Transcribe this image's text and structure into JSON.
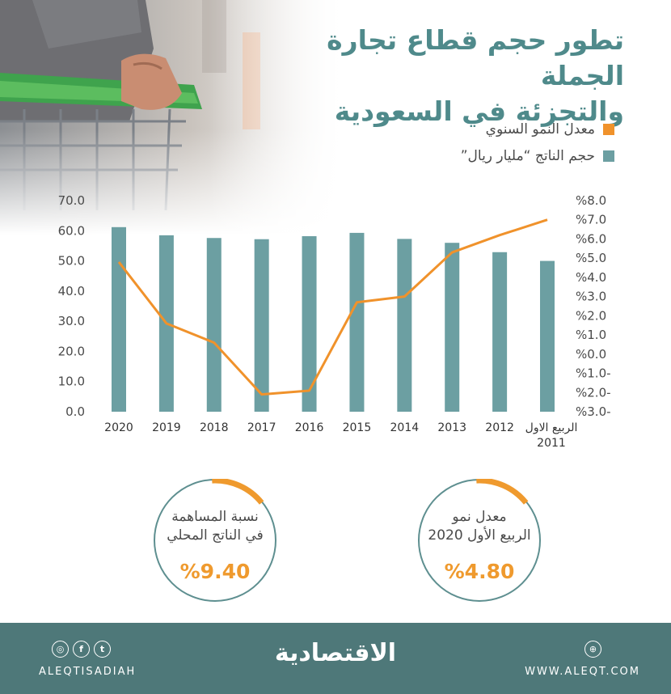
{
  "title": {
    "line1": "تطور حجم قطاع تجارة الجملة",
    "line2": "والتجزئة في السعودية"
  },
  "legend": {
    "growth_label": "معدل النمو السنوي",
    "volume_label": "حجم الناتج “مليار ريال”"
  },
  "colors": {
    "bar": "#6c9fa2",
    "line": "#f0922b",
    "accent": "#ef9a2e",
    "footer": "#4e7879",
    "title": "#4f8a8b"
  },
  "chart_data": {
    "type": "bar",
    "categories": [
      "2020",
      "2019",
      "2018",
      "2017",
      "2016",
      "2015",
      "2014",
      "2013",
      "2012",
      "الربيع الاول 2011"
    ],
    "series": [
      {
        "name": "حجم الناتج “مليار ريال”",
        "type": "bar",
        "axis": "left",
        "values": [
          61.2,
          58.5,
          57.6,
          57.2,
          58.2,
          59.3,
          57.3,
          56.0,
          52.9,
          50.0
        ]
      },
      {
        "name": "معدل النمو السنوي",
        "type": "line",
        "axis": "right",
        "values": [
          4.8,
          1.6,
          0.6,
          -2.1,
          -1.9,
          2.7,
          3.0,
          5.3,
          6.2,
          7.0
        ]
      }
    ],
    "y_left": {
      "min": 0,
      "max": 70,
      "ticks": [
        "0.0",
        "10.0",
        "20.0",
        "30.0",
        "40.0",
        "50.0",
        "60.0",
        "70.0"
      ]
    },
    "y_right": {
      "min": -3,
      "max": 8,
      "ticks": [
        "%3.0-",
        "%2.0-",
        "%1.0-",
        "%0.0",
        "%1.0",
        "%2.0",
        "%3.0",
        "%4.0",
        "%5.0",
        "%6.0",
        "%7.0",
        "%8.0"
      ]
    },
    "grid": false,
    "legend_position": "top-right"
  },
  "stats": [
    {
      "label_line1": "نسبة المساهمة",
      "label_line2": "في الناتج المحلي",
      "value": "%9.40",
      "fraction": 0.15
    },
    {
      "label_line1": "معدل نمو",
      "label_line2": "الربيع الأول 2020",
      "value": "%4.80",
      "fraction": 0.15
    }
  ],
  "footer": {
    "logo": "الاقتصادية",
    "handle": "ALEQTISADIAH",
    "website": "WWW.ALEQT.COM",
    "social_icons": [
      "instagram-icon",
      "facebook-icon",
      "twitter-icon"
    ],
    "web_icon": "globe-icon"
  }
}
